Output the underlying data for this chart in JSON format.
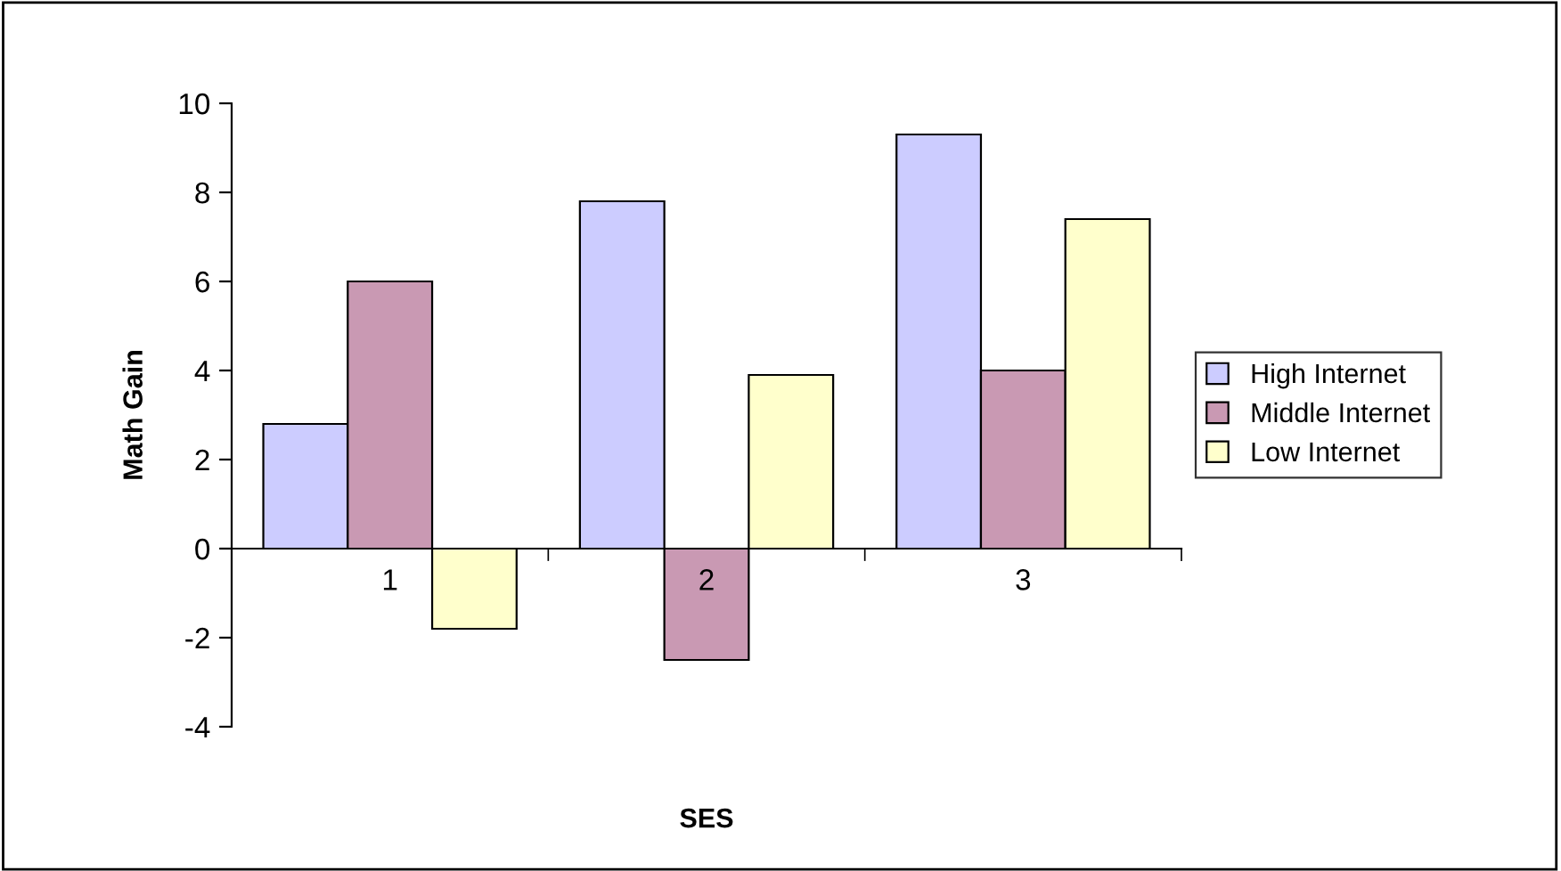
{
  "chart_data": {
    "type": "bar",
    "xlabel": "SES",
    "ylabel": "Math Gain",
    "categories": [
      "1",
      "2",
      "3"
    ],
    "series": [
      {
        "name": "High Internet",
        "color": "#ccccff",
        "values": [
          2.8,
          7.8,
          9.3
        ]
      },
      {
        "name": "Middle Internet",
        "color": "#c999b3",
        "values": [
          6.0,
          -2.5,
          4.0
        ]
      },
      {
        "name": "Low Internet",
        "color": "#ffffcc",
        "values": [
          -1.8,
          3.9,
          7.4
        ]
      }
    ],
    "ylim": [
      -4,
      10
    ],
    "yticks": [
      -4,
      -2,
      0,
      2,
      4,
      6,
      8,
      10
    ],
    "grid": false,
    "legend": "right"
  }
}
